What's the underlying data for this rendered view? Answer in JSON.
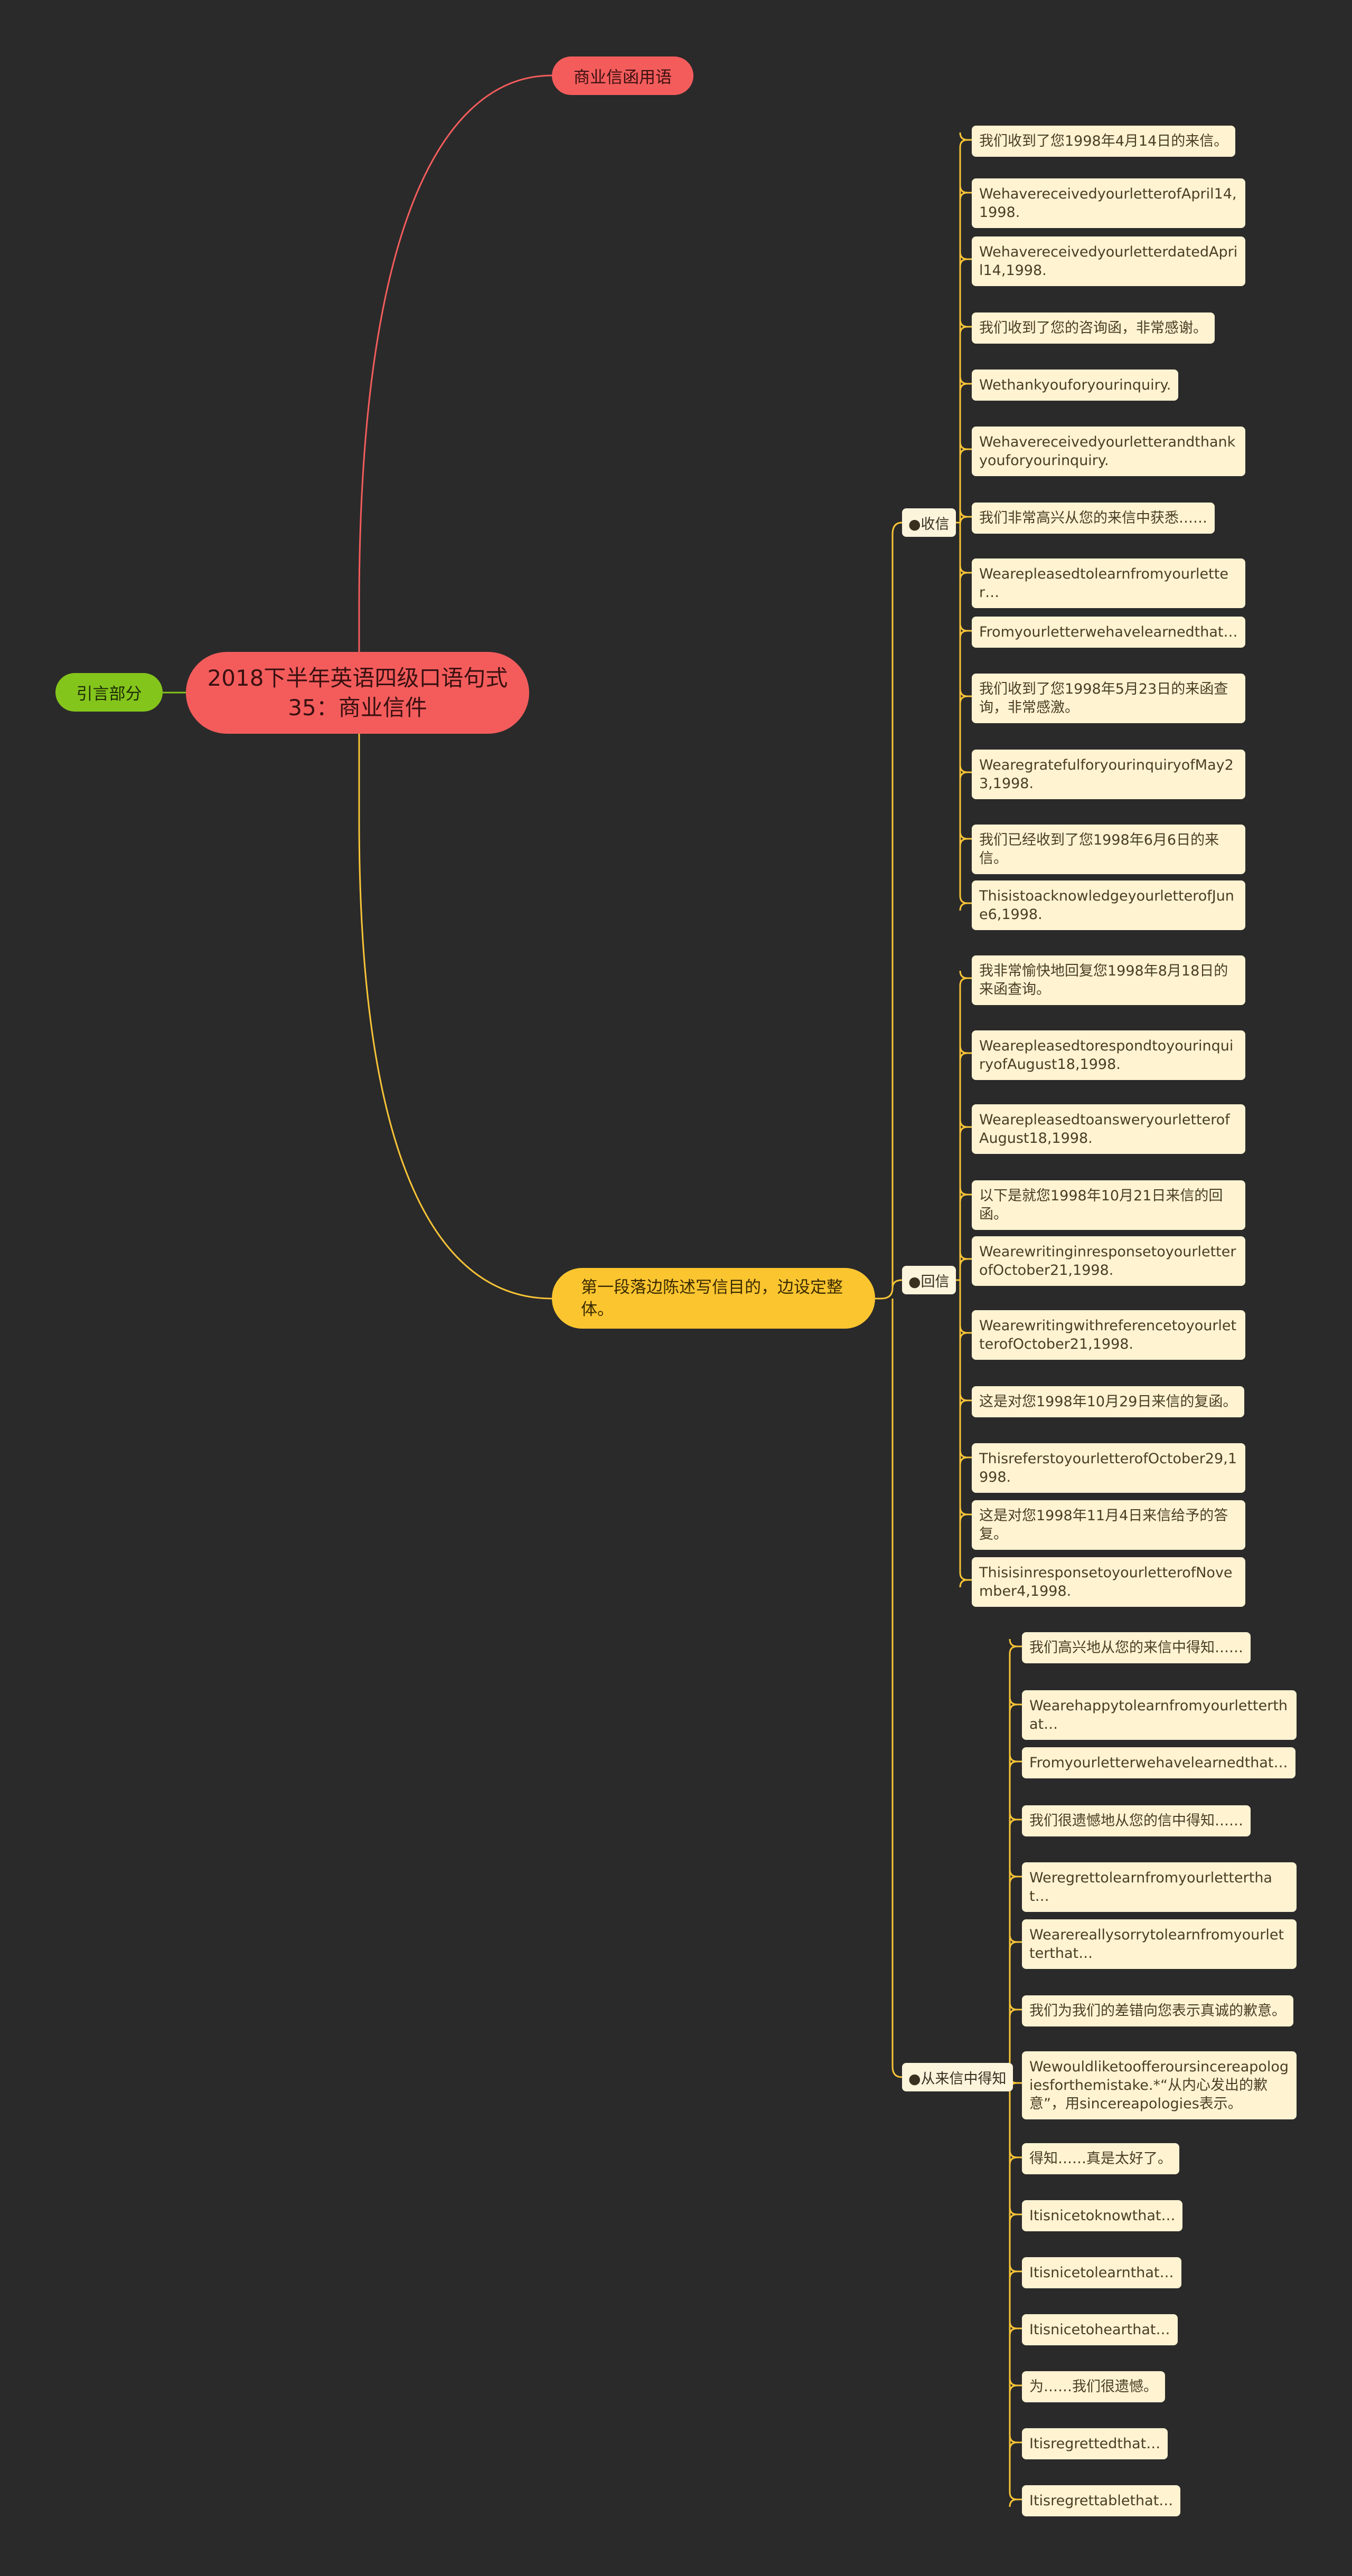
{
  "colors": {
    "background": "#2a2a2a",
    "root": "#f45c5c",
    "intro": "#84c51c",
    "para": "#fbc530",
    "leaf": "#fff3d2",
    "line_red": "#f45c5c",
    "line_yellow": "#f8c437"
  },
  "root": {
    "title": "2018下半年英语四级口语句式35：商业信件"
  },
  "intro": {
    "label": "引言部分"
  },
  "business": {
    "label": "商业信函用语"
  },
  "paragraph": {
    "label": "第一段落边陈述写信目的，边设定整体。"
  },
  "categories": [
    {
      "label": "●收信",
      "items": [
        "我们收到了您1998年4月14日的来信。",
        "WehavereceivedyourletterofApril14,1998.",
        "WehavereceivedyourletterdatedApril14,1998.",
        "我们收到了您的咨询函，非常感谢。",
        "Wethankyouforyourinquiry.",
        "Wehavereceivedyourletterandthankyouforyourinquiry.",
        "我们非常高兴从您的来信中获悉……",
        "Wearepleasedtolearnfromyourletter…",
        "Fromyourletterwehavelearnedthat…",
        "我们收到了您1998年5月23日的来函查询，非常感激。",
        "WearegratefulforyourinquiryofMay23,1998.",
        "我们已经收到了您1998年6月6日的来信。",
        "ThisistoacknowledgeyourletterofJune6,1998."
      ]
    },
    {
      "label": "●回信",
      "items": [
        "我非常愉快地回复您1998年8月18日的来函查询。",
        "WearepleasedtorespondtoyourinquiryofAugust18,1998.",
        "WearepleasedtoansweryourletterofAugust18,1998.",
        "以下是就您1998年10月21日来信的回函。",
        "WearewritinginresponsetoyourletterofOctober21,1998.",
        "WearewritingwithreferencetoyourletterofOctober21,1998.",
        "这是对您1998年10月29日来信的复函。",
        "ThisreferstoyourletterofOctober29,1998.",
        "这是对您1998年11月4日来信给予的答复。",
        "ThisisinresponsetoyourletterofNovember4,1998."
      ]
    },
    {
      "label": "●从来信中得知",
      "items": [
        "我们高兴地从您的来信中得知……",
        "Wearehappytolearnfromyourletterthat…",
        "Fromyourletterwehavelearnedthat…",
        "我们很遗憾地从您的信中得知……",
        "Weregrettolearnfromyourletterthat…",
        "Wearereallysorrytolearnfromyourletterthat…",
        "我们为我们的差错向您表示真诚的歉意。",
        "Wewouldliketoofferoursincereapologiesforthemistake.*“从内心发出的歉意”，用sincereapologies表示。",
        "得知……真是太好了。",
        "Itisnicetoknowthat…",
        "Itisnicetolearnthat…",
        "Itisnicetohearthat…",
        "为……我们很遗憾。",
        "Itisregrettedthat…",
        "Itisregrettablethat…"
      ]
    }
  ]
}
